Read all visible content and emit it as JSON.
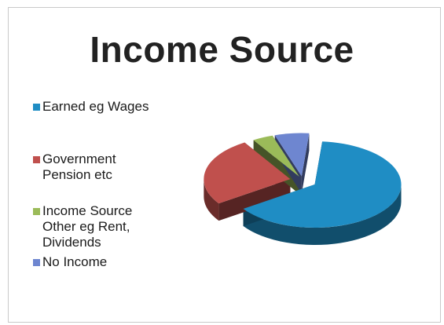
{
  "slide": {
    "title": "Income Source"
  },
  "legend": [
    {
      "label": "Earned eg Wages",
      "color": "#1f8dc4"
    },
    {
      "label": "Government Pension etc",
      "color": "#c0504d"
    },
    {
      "label": "Income Source Other eg Rent, Dividends",
      "color": "#9bbb59"
    },
    {
      "label": "No Income",
      "color": "#6e86d0"
    }
  ],
  "chart_data": {
    "type": "pie",
    "style": "3d-exploded",
    "categories": [
      "Earned eg Wages",
      "Government Pension etc",
      "Income Source Other eg Rent, Dividends",
      "No Income"
    ],
    "values": [
      50,
      20,
      3,
      5
    ],
    "colors": [
      "#1f8dc4",
      "#c0504d",
      "#9bbb59",
      "#6e86d0"
    ],
    "legend_position": "left"
  }
}
